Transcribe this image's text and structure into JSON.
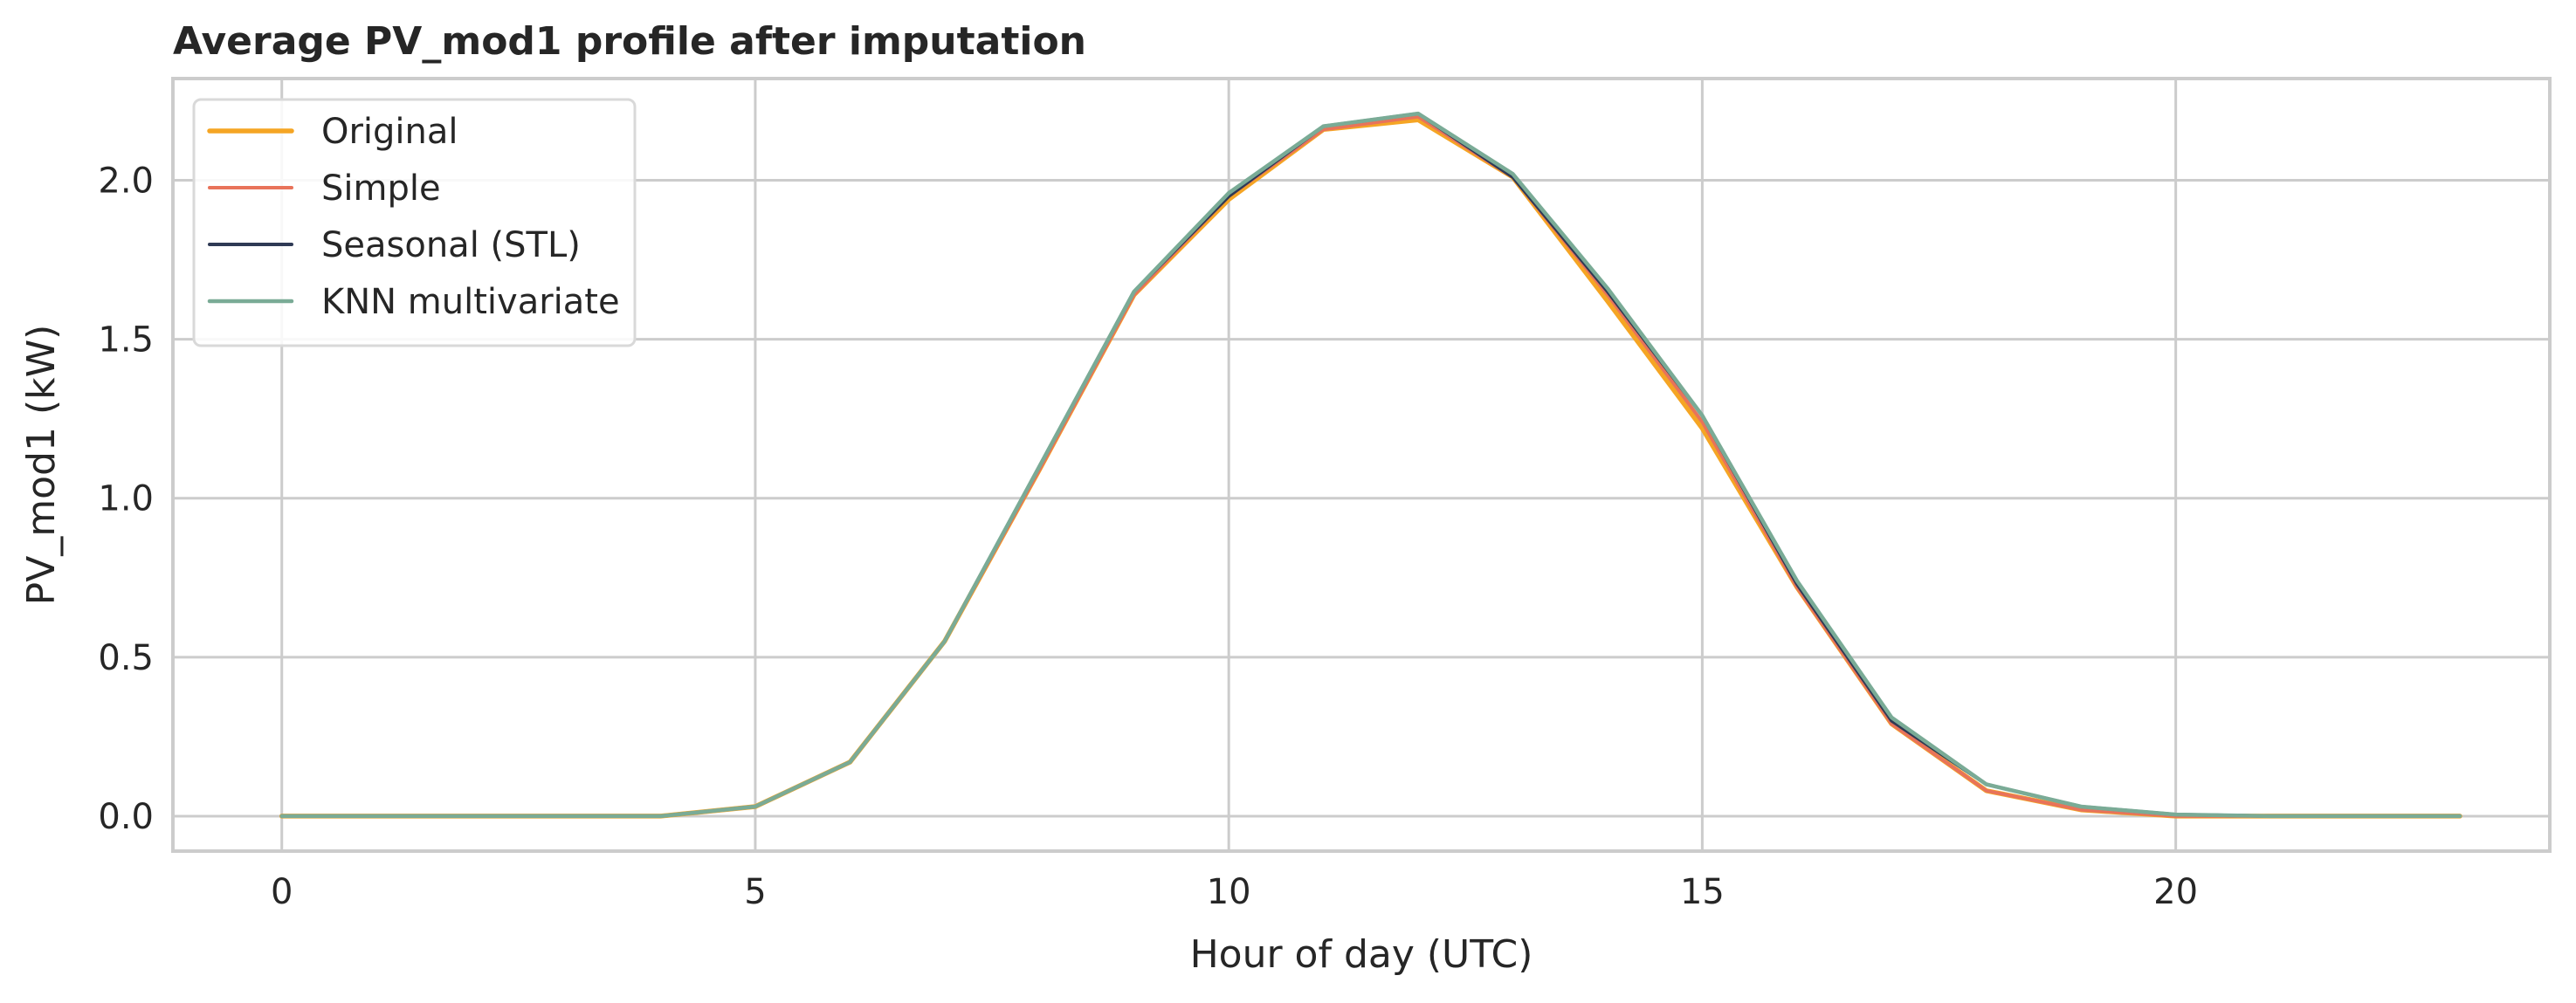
{
  "chart_data": {
    "type": "line",
    "title": "Average PV_mod1 profile after imputation",
    "xlabel": "Hour of day (UTC)",
    "ylabel": "PV_mod1 (kW)",
    "xlim": [
      -1.15,
      23.95
    ],
    "ylim": [
      -0.11,
      2.32
    ],
    "xticks": [
      0,
      5,
      10,
      15,
      20
    ],
    "yticks": [
      0.0,
      0.5,
      1.0,
      1.5,
      2.0
    ],
    "ytick_labels": [
      "0.0",
      "0.5",
      "1.0",
      "1.5",
      "2.0"
    ],
    "xtick_labels": [
      "0",
      "5",
      "10",
      "15",
      "20"
    ],
    "grid": true,
    "legend_position": "top-left",
    "x": [
      0,
      1,
      2,
      3,
      4,
      5,
      6,
      7,
      8,
      9,
      10,
      11,
      12,
      13,
      14,
      15,
      16,
      17,
      18,
      19,
      20,
      21,
      22,
      23
    ],
    "series": [
      {
        "name": "Original",
        "color": "#f5a524",
        "values": [
          0,
          0,
          0,
          0,
          0,
          0.03,
          0.17,
          0.55,
          1.09,
          1.64,
          1.94,
          2.16,
          2.19,
          2.01,
          1.62,
          1.22,
          0.72,
          0.29,
          0.08,
          0.02,
          0,
          0,
          0,
          0
        ]
      },
      {
        "name": "Simple",
        "color": "#e8735a",
        "values": [
          0,
          0,
          0,
          0,
          0,
          0.03,
          0.17,
          0.55,
          1.09,
          1.64,
          1.95,
          2.16,
          2.2,
          2.01,
          1.64,
          1.24,
          0.72,
          0.29,
          0.08,
          0.02,
          0,
          0,
          0,
          0
        ]
      },
      {
        "name": "Seasonal (STL)",
        "color": "#2f3a55",
        "values": [
          0,
          0,
          0,
          0,
          0,
          0.03,
          0.17,
          0.55,
          1.1,
          1.65,
          1.95,
          2.17,
          2.21,
          2.01,
          1.65,
          1.26,
          0.73,
          0.3,
          0.1,
          0.03,
          0.005,
          0,
          0,
          0
        ]
      },
      {
        "name": "KNN multivariate",
        "color": "#7aab96",
        "values": [
          0,
          0,
          0,
          0,
          0,
          0.03,
          0.17,
          0.55,
          1.1,
          1.65,
          1.96,
          2.17,
          2.21,
          2.02,
          1.66,
          1.26,
          0.74,
          0.31,
          0.1,
          0.03,
          0.005,
          0,
          0,
          0
        ]
      }
    ]
  }
}
